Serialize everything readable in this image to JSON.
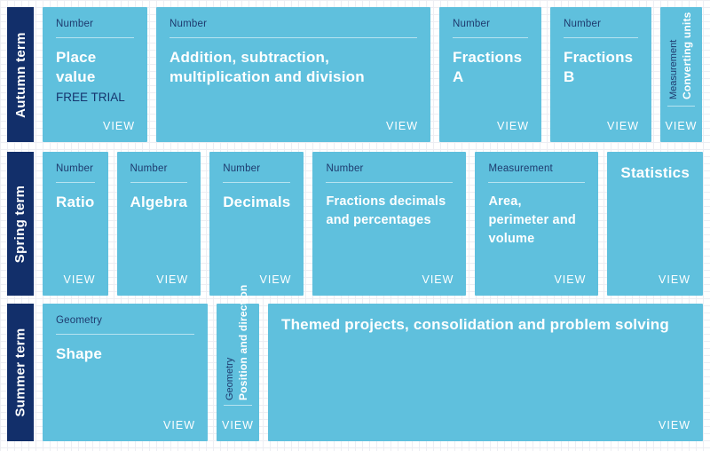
{
  "view_label": "VIEW",
  "colors": {
    "term_navy": "#122f6a",
    "card_blue": "#5fc0dd",
    "category_text": "#1e3a6e",
    "title_text": "#ffffff"
  },
  "terms": [
    {
      "label": "Autumn term",
      "cards": [
        {
          "category": "Number",
          "title": "Place value",
          "subtitle": "FREE TRIAL"
        },
        {
          "category": "Number",
          "title": "Addition, subtraction, multiplication and division"
        },
        {
          "category": "Number",
          "title": "Fractions A"
        },
        {
          "category": "Number",
          "title": "Fractions B"
        },
        {
          "category": "Measurement",
          "title": "Converting units"
        }
      ]
    },
    {
      "label": "Spring term",
      "cards": [
        {
          "category": "Number",
          "title": "Ratio"
        },
        {
          "category": "Number",
          "title": "Algebra"
        },
        {
          "category": "Number",
          "title": "Decimals"
        },
        {
          "category": "Number",
          "title": "Fractions decimals and percentages"
        },
        {
          "category": "Measurement",
          "title": "Area, perimeter and volume"
        },
        {
          "title": "Statistics"
        }
      ]
    },
    {
      "label": "Summer term",
      "cards": [
        {
          "category": "Geometry",
          "title": "Shape"
        },
        {
          "category": "Geometry",
          "title": "Position and direction"
        },
        {
          "title": "Themed projects, consolidation and problem solving"
        }
      ]
    }
  ]
}
